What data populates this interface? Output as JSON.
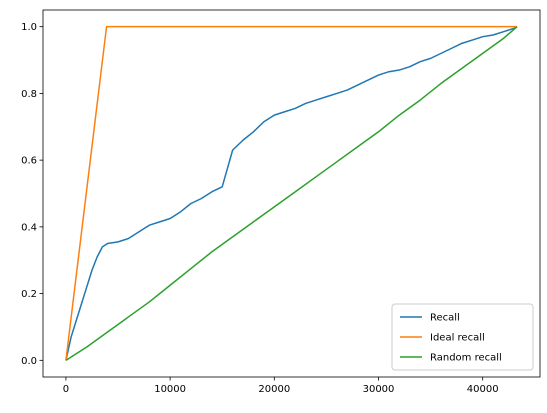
{
  "chart_data": {
    "type": "line",
    "title": "",
    "xlabel": "",
    "ylabel": "",
    "xlim": [
      -2200,
      45500
    ],
    "ylim": [
      -0.05,
      1.05
    ],
    "xticks": [
      0,
      10000,
      20000,
      30000,
      40000
    ],
    "xtick_labels": [
      "0",
      "10000",
      "20000",
      "30000",
      "40000"
    ],
    "yticks": [
      0.0,
      0.2,
      0.4,
      0.6,
      0.8,
      1.0
    ],
    "ytick_labels": [
      "0.0",
      "0.2",
      "0.4",
      "0.6",
      "0.8",
      "1.0"
    ],
    "grid": false,
    "legend_position": "lower-right",
    "series": [
      {
        "name": "Recall",
        "color": "#1f77b4",
        "x": [
          0,
          500,
          1000,
          1500,
          2000,
          2500,
          3000,
          3500,
          4000,
          5000,
          6000,
          7000,
          8000,
          9000,
          10000,
          11000,
          12000,
          13000,
          14000,
          15000,
          15500,
          16000,
          17000,
          18000,
          19000,
          20000,
          21000,
          22000,
          23000,
          24000,
          25000,
          26000,
          27000,
          28000,
          29000,
          30000,
          31000,
          32000,
          33000,
          34000,
          35000,
          36000,
          37000,
          38000,
          39000,
          40000,
          41000,
          42000,
          43000,
          43300
        ],
        "y": [
          0.0,
          0.07,
          0.12,
          0.17,
          0.22,
          0.27,
          0.31,
          0.34,
          0.35,
          0.355,
          0.365,
          0.385,
          0.405,
          0.415,
          0.425,
          0.445,
          0.47,
          0.485,
          0.505,
          0.52,
          0.575,
          0.63,
          0.66,
          0.685,
          0.715,
          0.735,
          0.745,
          0.755,
          0.77,
          0.78,
          0.79,
          0.8,
          0.81,
          0.825,
          0.84,
          0.855,
          0.865,
          0.87,
          0.88,
          0.895,
          0.905,
          0.92,
          0.935,
          0.95,
          0.96,
          0.97,
          0.975,
          0.985,
          0.995,
          1.0
        ]
      },
      {
        "name": "Ideal recall",
        "color": "#ff7f0e",
        "x": [
          0,
          3900,
          43300
        ],
        "y": [
          0.0,
          1.0,
          1.0
        ]
      },
      {
        "name": "Random recall",
        "color": "#2ca02c",
        "x": [
          0,
          2000,
          4000,
          6000,
          8000,
          10000,
          12000,
          14000,
          16000,
          18000,
          20000,
          22000,
          24000,
          26000,
          28000,
          30000,
          32000,
          34000,
          36000,
          38000,
          40000,
          42000,
          43300
        ],
        "y": [
          0.0,
          0.04,
          0.085,
          0.13,
          0.175,
          0.225,
          0.275,
          0.325,
          0.37,
          0.415,
          0.46,
          0.505,
          0.55,
          0.595,
          0.64,
          0.685,
          0.735,
          0.78,
          0.83,
          0.875,
          0.92,
          0.965,
          1.0
        ]
      }
    ]
  }
}
